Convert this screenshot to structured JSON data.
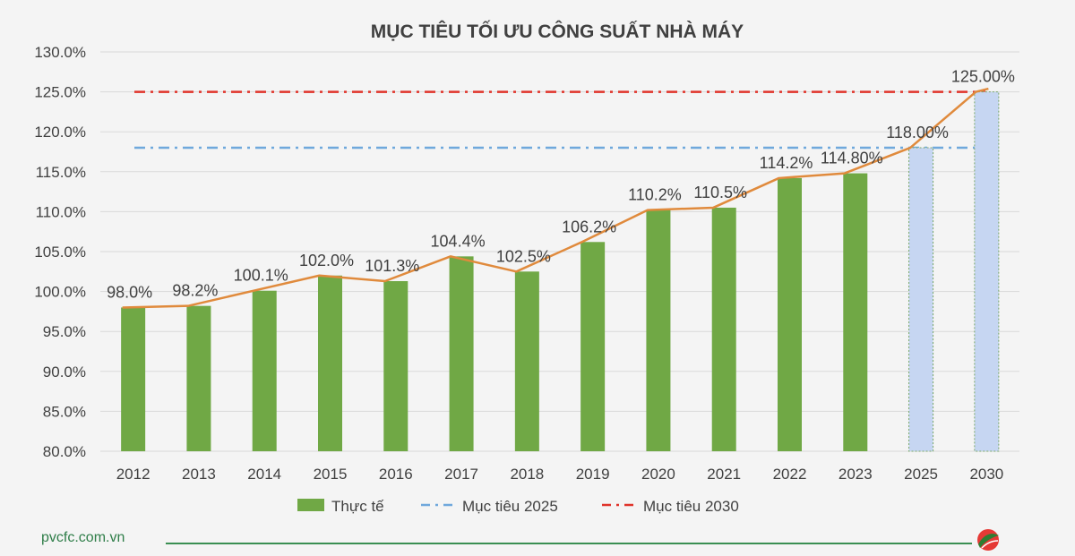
{
  "chart_data": {
    "type": "bar",
    "title": "MỤC TIÊU TỐI ƯU CÔNG SUẤT NHÀ MÁY",
    "categories": [
      "2012",
      "2013",
      "2014",
      "2015",
      "2016",
      "2017",
      "2018",
      "2019",
      "2020",
      "2021",
      "2022",
      "2023",
      "2025",
      "2030"
    ],
    "series": [
      {
        "name": "Thực tế",
        "kind": "bar",
        "color": "#70a845",
        "values": [
          98.0,
          98.2,
          100.1,
          102.0,
          101.3,
          104.4,
          102.5,
          106.2,
          110.2,
          110.5,
          114.2,
          114.8,
          118.0,
          125.0
        ],
        "labels": [
          "98.0%",
          "98.2%",
          "100.1%",
          "102.0%",
          "101.3%",
          "104.4%",
          "102.5%",
          "106.2%",
          "110.2%",
          "110.5%",
          "114.2%",
          "114.80%",
          "118.00%",
          "125.00%"
        ],
        "target_bar_color": "#c6d6f2"
      },
      {
        "name": "Mục tiêu 2025",
        "kind": "reference-line",
        "value": 118.0,
        "color": "#6fa8dc",
        "style": "dash-dot"
      },
      {
        "name": "Mục tiêu 2030",
        "kind": "reference-line",
        "value": 125.0,
        "color": "#e0332a",
        "style": "dash-dot"
      }
    ],
    "trend_line_color": "#e08a3c",
    "ylim": [
      80,
      130
    ],
    "yticks": [
      80,
      85,
      90,
      95,
      100,
      105,
      110,
      115,
      120,
      125,
      130
    ],
    "ytick_labels": [
      "80.0%",
      "85.0%",
      "90.0%",
      "95.0%",
      "100.0%",
      "105.0%",
      "110.0%",
      "115.0%",
      "120.0%",
      "125.0%",
      "130.0%"
    ],
    "grid": true,
    "legend": "bottom"
  },
  "footer": {
    "site": "pvcfc.com.vn"
  },
  "colors": {
    "grid": "#d9d9d9",
    "text": "#404040",
    "footer": "#2e7d48"
  }
}
